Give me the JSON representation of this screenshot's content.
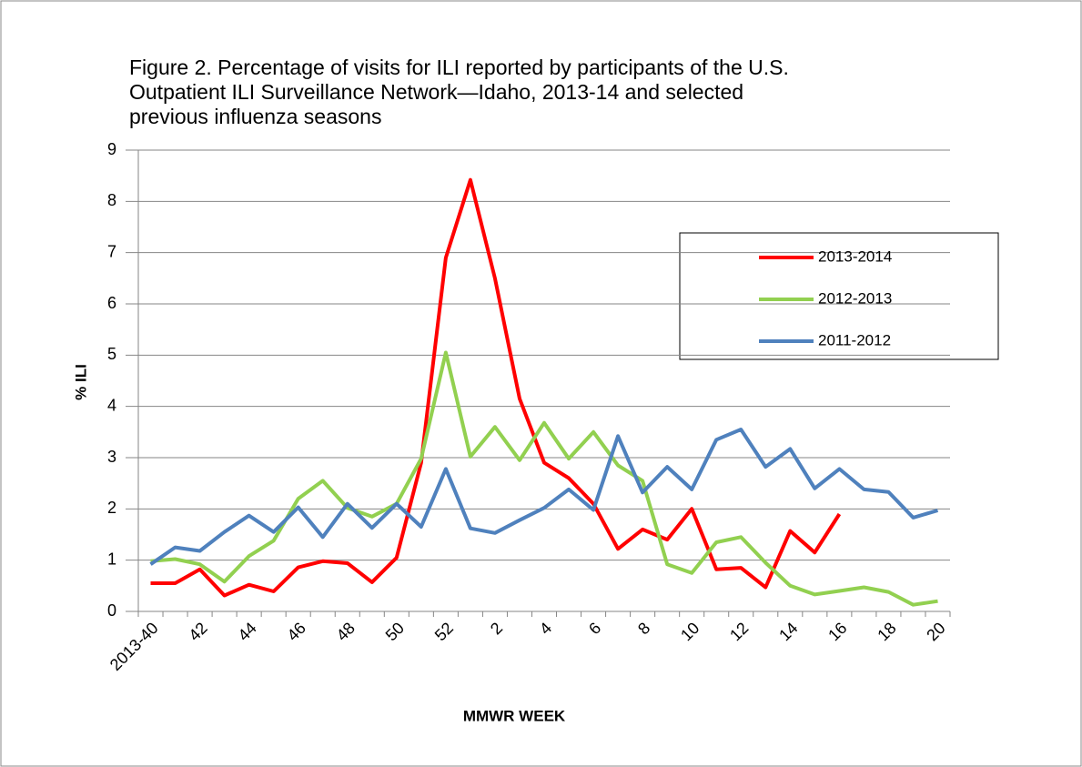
{
  "chart_data": {
    "type": "line",
    "title_lines": [
      "Figure 2. Percentage of visits for ILI reported by participants of the U.S.",
      "Outpatient ILI Surveillance Network—Idaho, 2013-14 and selected",
      "previous influenza seasons"
    ],
    "x_label": "MMWR WEEK",
    "y_label": "% ILI",
    "categories": [
      "2013-40",
      null,
      "42",
      null,
      "44",
      null,
      "46",
      null,
      "48",
      null,
      "50",
      null,
      "52",
      null,
      "2",
      null,
      "4",
      null,
      "6",
      null,
      "8",
      null,
      "10",
      null,
      "12",
      null,
      "14",
      null,
      "16",
      null,
      "18",
      null,
      "20"
    ],
    "series": [
      {
        "name": "2013-2014",
        "color": "#ff0000",
        "values": [
          0.55,
          0.55,
          0.82,
          0.31,
          0.52,
          0.39,
          0.86,
          0.98,
          0.94,
          0.57,
          1.05,
          2.9,
          6.9,
          8.42,
          6.5,
          4.15,
          2.9,
          2.6,
          2.1,
          1.22,
          1.6,
          1.4,
          2.0,
          0.82,
          0.85,
          0.47,
          1.57,
          1.15,
          1.9,
          null,
          null,
          null,
          null
        ]
      },
      {
        "name": "2012-2013",
        "color": "#92d050",
        "values": [
          0.98,
          1.02,
          0.92,
          0.58,
          1.08,
          1.38,
          2.2,
          2.55,
          2.02,
          1.85,
          2.1,
          2.98,
          5.05,
          3.02,
          3.6,
          2.95,
          3.68,
          2.98,
          3.5,
          2.85,
          2.55,
          0.92,
          0.75,
          1.35,
          1.45,
          0.95,
          0.5,
          0.33,
          0.4,
          0.47,
          0.38,
          0.13,
          0.2
        ]
      },
      {
        "name": "2011-2012",
        "color": "#4f81bd",
        "values": [
          0.92,
          1.25,
          1.18,
          1.55,
          1.87,
          1.55,
          2.03,
          1.45,
          2.1,
          1.63,
          2.1,
          1.65,
          2.78,
          1.62,
          1.53,
          1.78,
          2.02,
          2.38,
          1.98,
          3.42,
          2.32,
          2.82,
          2.38,
          3.35,
          3.55,
          2.82,
          3.17,
          2.4,
          2.78,
          2.38,
          2.33,
          1.83,
          1.97
        ]
      }
    ],
    "ylim": [
      0,
      9
    ],
    "yticks": [
      0,
      1,
      2,
      3,
      4,
      5,
      6,
      7,
      8,
      9
    ],
    "grid": true
  }
}
